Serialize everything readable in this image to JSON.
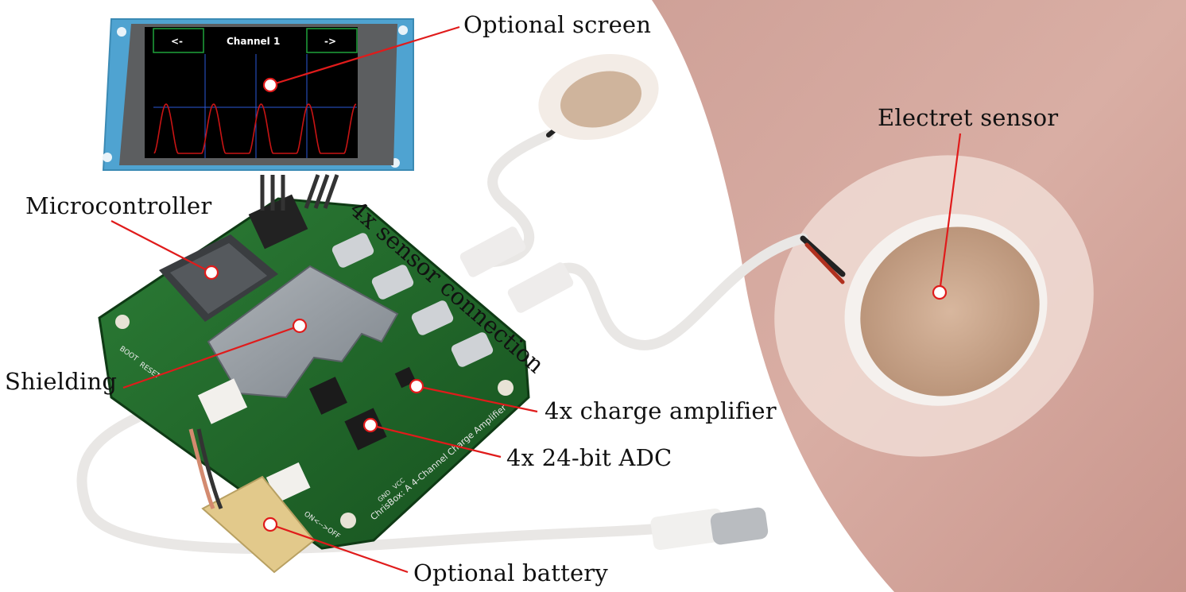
{
  "labels": {
    "optional_screen": "Optional screen",
    "microcontroller": "Microcontroller",
    "sensor_connection": "4x sensor connection",
    "electret_sensor": "Electret sensor",
    "shielding": "Shielding",
    "charge_amplifier": "4x charge amplifier",
    "adc": "4x 24-bit ADC",
    "optional_battery": "Optional battery"
  },
  "screen": {
    "left_button": "<-",
    "title": "Channel 1",
    "right_button": "->"
  },
  "board": {
    "silkscreen": "ChrisBox: A 4-Channel Charge Amplifier",
    "switch_label": "ON<-->OFF",
    "boot_label": "BOOT",
    "reset_label": "RESET",
    "gnd_label": "GND",
    "vcc_label": "VCC"
  },
  "colors": {
    "callout": "#e01b1b",
    "pcb": "#1f6b2a",
    "skin": "#d8aba0",
    "screen_frame": "#4fa3d1"
  }
}
